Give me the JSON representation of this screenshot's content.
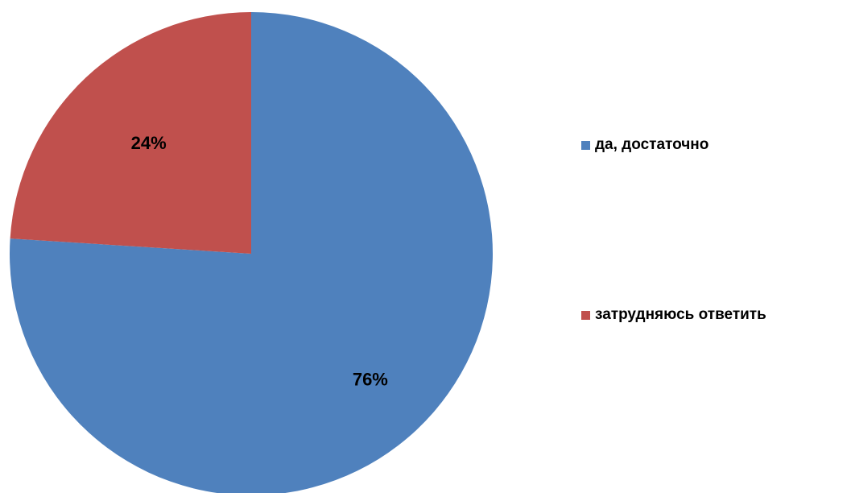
{
  "chart_data": {
    "type": "pie",
    "start_angle_deg": 0,
    "direction": "clockwise",
    "slices": [
      {
        "label": "да, достаточно",
        "value": 76,
        "display": "76%",
        "color": "#4F81BD"
      },
      {
        "label": "затрудняюсь ответить",
        "value": 24,
        "display": "24%",
        "color": "#C0504D"
      }
    ],
    "legend": {
      "position": "right",
      "items": [
        {
          "label": "да, достаточно",
          "color": "#4F81BD"
        },
        {
          "label": "затрудняюсь ответить",
          "color": "#C0504D"
        }
      ]
    }
  }
}
